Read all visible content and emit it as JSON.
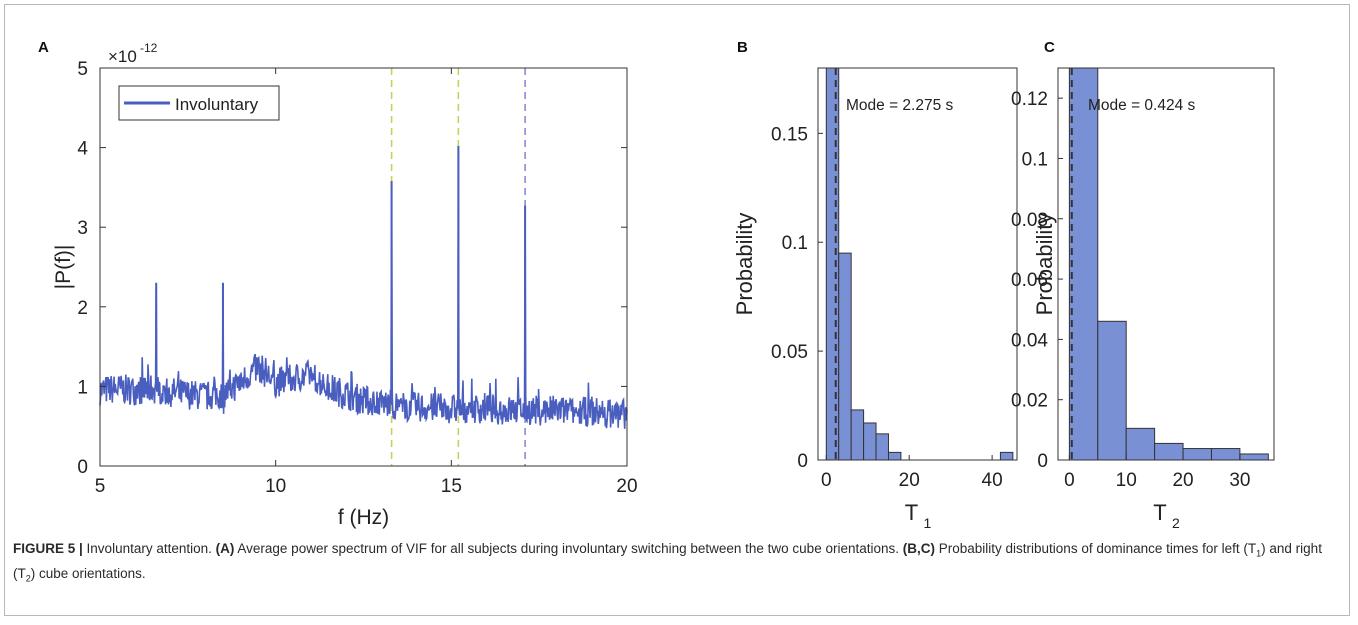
{
  "chart_data": [
    {
      "panel": "A",
      "type": "line",
      "xlabel": "f (Hz)",
      "ylabel": "|P(f)|",
      "exponent_base": "×10",
      "exponent_power": "-12",
      "xlim": [
        5,
        20
      ],
      "ylim": [
        0,
        5
      ],
      "xticks": [
        5,
        10,
        15,
        20
      ],
      "yticks": [
        0,
        1,
        2,
        3,
        4,
        5
      ],
      "legend": "top-left",
      "grid": false,
      "series": [
        {
          "name": "Involuntary",
          "color": "#4a5ec0",
          "x": [
            5.0,
            5.5,
            6.0,
            6.5,
            7.0,
            7.5,
            8.0,
            8.5,
            9.0,
            9.5,
            10.0,
            10.5,
            11.0,
            11.5,
            12.0,
            12.5,
            13.0,
            13.5,
            14.0,
            14.5,
            15.0,
            15.5,
            16.0,
            16.5,
            17.0,
            17.5,
            18.0,
            18.5,
            19.0,
            19.5,
            20.0
          ],
          "values": [
            0.95,
            0.97,
            0.95,
            0.97,
            0.93,
            0.9,
            0.88,
            0.9,
            1.05,
            1.25,
            1.05,
            1.1,
            1.15,
            0.98,
            0.9,
            0.82,
            0.8,
            0.75,
            0.74,
            0.73,
            0.72,
            0.72,
            0.72,
            0.7,
            0.7,
            0.7,
            0.7,
            0.68,
            0.68,
            0.66,
            0.65
          ]
        }
      ],
      "peaks": [
        {
          "x": 6.6,
          "y": 2.3
        },
        {
          "x": 8.5,
          "y": 2.3
        },
        {
          "x": 13.3,
          "y": 3.58
        },
        {
          "x": 15.2,
          "y": 4.02
        },
        {
          "x": 17.1,
          "y": 3.27
        }
      ],
      "reference_lines": [
        {
          "x": 13.3,
          "color": "#c9d05a"
        },
        {
          "x": 15.2,
          "color": "#c9d05a"
        },
        {
          "x": 17.1,
          "color": "#8c8ad6"
        }
      ]
    },
    {
      "panel": "B",
      "type": "bar",
      "xlabel": "T",
      "xlabel_sub": "1",
      "ylabel": "Probability",
      "annotation": "Mode = 2.275 s",
      "mode_value": 2.275,
      "xlim": [
        -2,
        46
      ],
      "ylim": [
        0,
        0.18
      ],
      "xticks": [
        0,
        20,
        40
      ],
      "yticks": [
        0,
        0.05,
        0.1,
        0.15
      ],
      "ytick_labels": [
        "0",
        "0.05",
        "0.1",
        "0.15"
      ],
      "bin_width": 3,
      "bins_start": [
        0,
        3,
        6,
        9,
        12,
        15,
        42
      ],
      "values": [
        0.18,
        0.095,
        0.023,
        0.017,
        0.012,
        0.0035,
        0.0035
      ],
      "color": "#7a90d4"
    },
    {
      "panel": "C",
      "type": "bar",
      "xlabel": "T",
      "xlabel_sub": "2",
      "ylabel": "Probability",
      "annotation": "Mode = 0.424 s",
      "mode_value": 0.424,
      "xlim": [
        -2,
        36
      ],
      "ylim": [
        0,
        0.13
      ],
      "xticks": [
        0,
        10,
        20,
        30
      ],
      "yticks": [
        0,
        0.02,
        0.04,
        0.06,
        0.08,
        0.1,
        0.12
      ],
      "ytick_labels": [
        "0",
        "0.02",
        "0.04",
        "0.06",
        "0.08",
        "0.1",
        "0.12"
      ],
      "bin_width": 5,
      "bins_start": [
        0,
        5,
        10,
        15,
        20,
        25,
        30
      ],
      "values": [
        0.13,
        0.046,
        0.0105,
        0.0055,
        0.0038,
        0.0038,
        0.002
      ],
      "color": "#7a90d4"
    }
  ],
  "caption": {
    "label": "FIGURE 5 |",
    "intro": " Involuntary attention. ",
    "a_ref": "(A)",
    "a_text": " Average power spectrum of VIF for all subjects during involuntary switching between the two cube orientations. ",
    "bc_ref": "(B,C)",
    "bc_text_1": " Probability distributions of dominance times for left (T",
    "bc_sub_1": "1",
    "bc_text_2": ") and right (T",
    "bc_sub_2": "2",
    "bc_text_3": ") cube orientations."
  }
}
